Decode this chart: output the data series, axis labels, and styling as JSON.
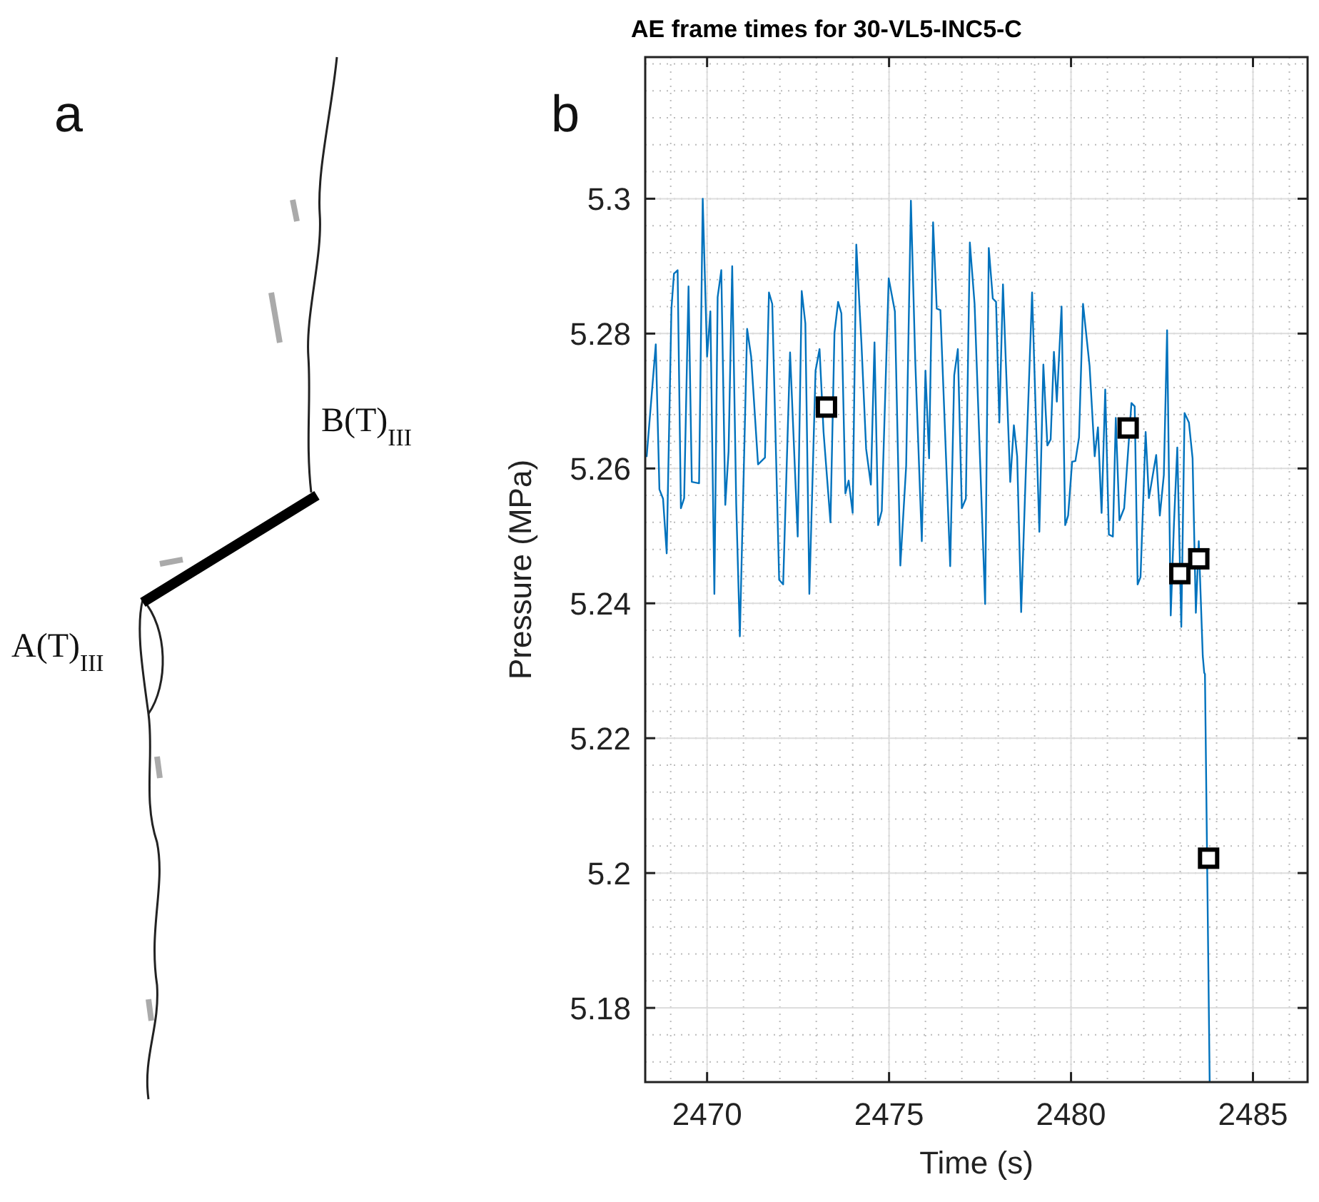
{
  "chart_data": {
    "type": "line",
    "title": "AE frame times for 30-VL5-INC5-C",
    "xlabel": "Time (s)",
    "ylabel": "Pressure (MPa)",
    "annotations": [
      "a",
      "b",
      "A(T)$_{III}$",
      "B(T)$_{III}$"
    ],
    "xlim": [
      2468.3,
      2486.5
    ],
    "ylim": [
      5.169,
      5.321
    ],
    "xticks": [
      2470,
      2475,
      2480,
      2485
    ],
    "yticks": [
      5.18,
      5.2,
      5.22,
      5.24,
      5.26,
      5.28,
      5.3
    ],
    "grid": true,
    "series": [
      {
        "color": "#0072bd",
        "marker": "none",
        "line_style": "solid",
        "x": [
          2468.34,
          2468.59,
          2468.69,
          2468.79,
          2468.89,
          2469.02,
          2469.09,
          2469.19,
          2469.28,
          2469.37,
          2469.49,
          2469.58,
          2469.78,
          2469.88,
          2470.0,
          2470.09,
          2470.2,
          2470.29,
          2470.39,
          2470.5,
          2470.59,
          2470.69,
          2470.8,
          2470.9,
          2471.1,
          2471.21,
          2471.4,
          2471.59,
          2471.7,
          2471.79,
          2471.98,
          2472.09,
          2472.28,
          2472.49,
          2472.6,
          2472.7,
          2472.81,
          2472.98,
          2473.09,
          2473.2,
          2473.39,
          2473.5,
          2473.6,
          2473.69,
          2473.8,
          2473.89,
          2474.0,
          2474.1,
          2474.24,
          2474.37,
          2474.5,
          2474.6,
          2474.7,
          2474.8,
          2474.99,
          2475.16,
          2475.31,
          2475.47,
          2475.6,
          2475.72,
          2475.9,
          2476.0,
          2476.1,
          2476.21,
          2476.31,
          2476.41,
          2476.68,
          2476.79,
          2476.89,
          2477.0,
          2477.11,
          2477.22,
          2477.35,
          2477.64,
          2477.74,
          2477.85,
          2477.94,
          2478.03,
          2478.13,
          2478.33,
          2478.43,
          2478.52,
          2478.63,
          2478.75,
          2478.93,
          2479.13,
          2479.24,
          2479.35,
          2479.44,
          2479.53,
          2479.61,
          2479.74,
          2479.84,
          2479.92,
          2480.03,
          2480.12,
          2480.22,
          2480.33,
          2480.51,
          2480.65,
          2480.74,
          2480.84,
          2480.94,
          2481.04,
          2481.15,
          2481.23,
          2481.33,
          2481.46,
          2481.66,
          2481.75,
          2481.83,
          2481.91,
          2482.05,
          2482.14,
          2482.34,
          2482.44,
          2482.55,
          2482.64,
          2482.74,
          2482.83,
          2482.92,
          2483.03,
          2483.12,
          2483.24,
          2483.34,
          2483.43,
          2483.51,
          2483.62,
          2483.66,
          2483.68,
          2483.81
        ],
        "values": [
          5.2618,
          5.2784,
          5.2569,
          5.2555,
          5.2474,
          5.2837,
          5.2889,
          5.2894,
          5.2541,
          5.2556,
          5.287,
          5.258,
          5.2578,
          5.3,
          5.2766,
          5.2833,
          5.2414,
          5.2854,
          5.2894,
          5.2546,
          5.2625,
          5.29,
          5.2548,
          5.2351,
          5.2807,
          5.2766,
          5.2606,
          5.2616,
          5.2861,
          5.2844,
          5.2435,
          5.2428,
          5.2772,
          5.2499,
          5.2863,
          5.2815,
          5.2414,
          5.2745,
          5.2777,
          5.2654,
          5.252,
          5.2801,
          5.2847,
          5.283,
          5.2563,
          5.2582,
          5.2534,
          5.2932,
          5.2787,
          5.2629,
          5.2576,
          5.2787,
          5.2516,
          5.2537,
          5.2882,
          5.2833,
          5.2456,
          5.2604,
          5.2997,
          5.2759,
          5.2492,
          5.2745,
          5.2615,
          5.2965,
          5.2837,
          5.2835,
          5.2455,
          5.2738,
          5.2777,
          5.2541,
          5.2555,
          5.2935,
          5.2844,
          5.2399,
          5.2927,
          5.2852,
          5.2847,
          5.2668,
          5.2873,
          5.258,
          5.2664,
          5.2618,
          5.2387,
          5.2583,
          5.2861,
          5.2506,
          5.2754,
          5.2634,
          5.2643,
          5.2773,
          5.2699,
          5.284,
          5.2516,
          5.253,
          5.261,
          5.2611,
          5.2646,
          5.2844,
          5.2752,
          5.2618,
          5.2661,
          5.2534,
          5.2717,
          5.2502,
          5.2499,
          5.2675,
          5.2523,
          5.2541,
          5.2697,
          5.2692,
          5.2428,
          5.2439,
          5.2654,
          5.2556,
          5.262,
          5.253,
          5.259,
          5.2805,
          5.2382,
          5.252,
          5.2631,
          5.2365,
          5.2682,
          5.2668,
          5.2615,
          5.2386,
          5.2492,
          5.2322,
          5.2297,
          5.2295,
          5.169
        ]
      },
      {
        "type": "scatter",
        "color": "#000000",
        "marker": "square",
        "x": [
          2473.28,
          2481.57,
          2482.99,
          2483.51,
          2483.78
        ],
        "values": [
          5.2691,
          5.266,
          5.2444,
          5.2466,
          5.2022
        ]
      }
    ]
  }
}
